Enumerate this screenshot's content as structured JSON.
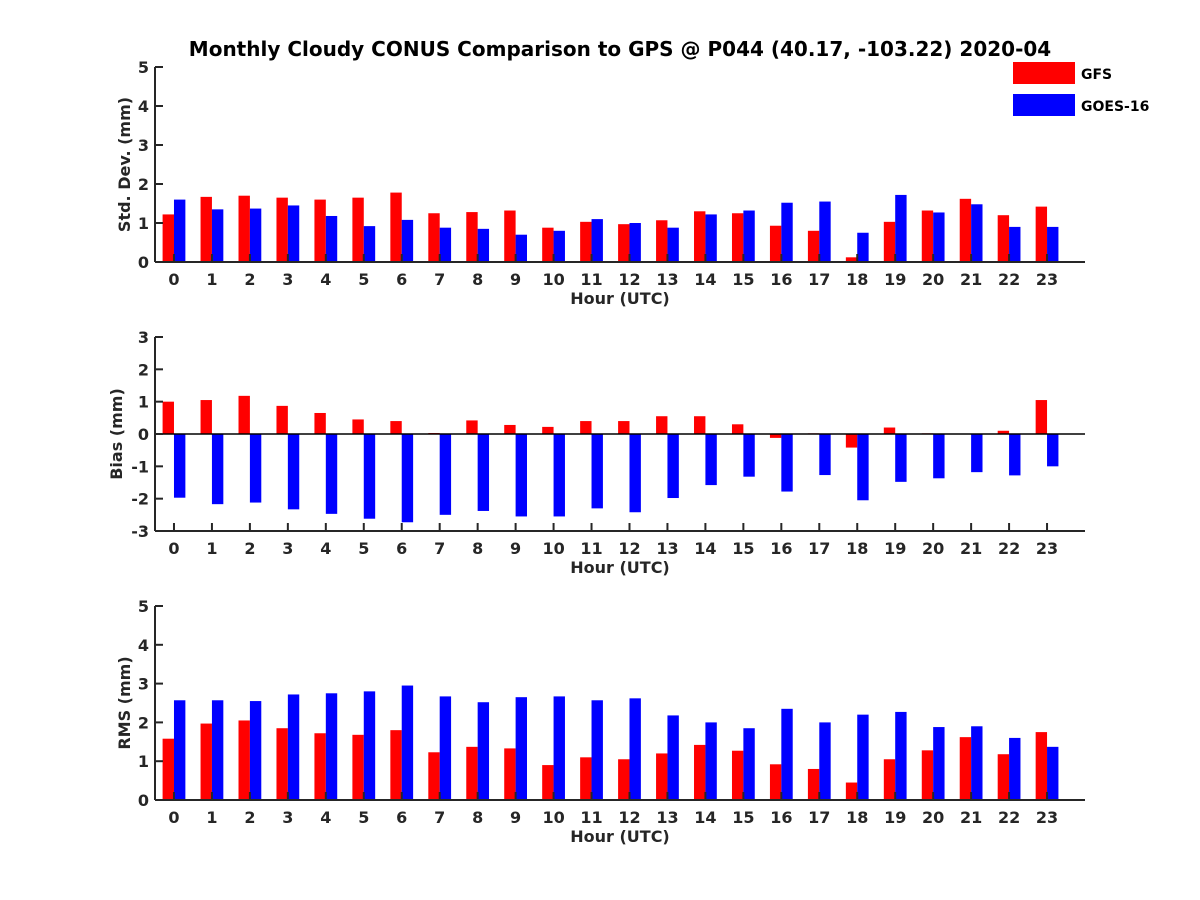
{
  "title": "Monthly Cloudy CONUS Comparison to GPS @ P044 (40.17, -103.22) 2020-04",
  "colors": {
    "gfs": "#ff0000",
    "goes": "#0000ff",
    "axis": "#262626"
  },
  "legend": [
    {
      "label": "GFS",
      "color": "#ff0000"
    },
    {
      "label": "GOES-16",
      "color": "#0000ff"
    }
  ],
  "chart_data": [
    {
      "type": "bar",
      "xlabel": "Hour (UTC)",
      "ylabel": "Std. Dev. (mm)",
      "ylim": [
        0,
        5
      ],
      "yticks": [
        0,
        1,
        2,
        3,
        4,
        5
      ],
      "categories": [
        "0",
        "1",
        "2",
        "3",
        "4",
        "5",
        "6",
        "7",
        "8",
        "9",
        "10",
        "11",
        "12",
        "13",
        "14",
        "15",
        "16",
        "17",
        "18",
        "19",
        "20",
        "21",
        "22",
        "23"
      ],
      "series": [
        {
          "name": "GFS",
          "values": [
            1.22,
            1.67,
            1.7,
            1.65,
            1.6,
            1.65,
            1.78,
            1.25,
            1.28,
            1.32,
            0.88,
            1.03,
            0.97,
            1.07,
            1.3,
            1.25,
            0.93,
            0.8,
            0.12,
            1.03,
            1.32,
            1.62,
            1.2,
            1.42
          ]
        },
        {
          "name": "GOES-16",
          "values": [
            1.6,
            1.35,
            1.37,
            1.45,
            1.18,
            0.92,
            1.08,
            0.88,
            0.85,
            0.7,
            0.8,
            1.1,
            1.0,
            0.88,
            1.22,
            1.32,
            1.52,
            1.55,
            0.75,
            1.72,
            1.27,
            1.48,
            0.9,
            0.9
          ]
        }
      ]
    },
    {
      "type": "bar",
      "xlabel": "Hour (UTC)",
      "ylabel": "Bias (mm)",
      "ylim": [
        -3,
        3
      ],
      "yticks": [
        -3,
        -2,
        -1,
        0,
        1,
        2,
        3
      ],
      "categories": [
        "0",
        "1",
        "2",
        "3",
        "4",
        "5",
        "6",
        "7",
        "8",
        "9",
        "10",
        "11",
        "12",
        "13",
        "14",
        "15",
        "16",
        "17",
        "18",
        "19",
        "20",
        "21",
        "22",
        "23"
      ],
      "series": [
        {
          "name": "GFS",
          "values": [
            1.0,
            1.05,
            1.18,
            0.87,
            0.65,
            0.45,
            0.4,
            0.03,
            0.42,
            0.28,
            0.22,
            0.4,
            0.4,
            0.55,
            0.55,
            0.3,
            -0.12,
            0.02,
            -0.42,
            0.2,
            0.02,
            0.0,
            0.1,
            1.05
          ]
        },
        {
          "name": "GOES-16",
          "values": [
            -1.97,
            -2.17,
            -2.12,
            -2.33,
            -2.47,
            -2.62,
            -2.73,
            -2.5,
            -2.38,
            -2.55,
            -2.55,
            -2.3,
            -2.42,
            -1.98,
            -1.58,
            -1.32,
            -1.78,
            -1.27,
            -2.05,
            -1.48,
            -1.37,
            -1.18,
            -1.28,
            -1.0
          ]
        }
      ]
    },
    {
      "type": "bar",
      "xlabel": "Hour (UTC)",
      "ylabel": "RMS (mm)",
      "ylim": [
        0,
        5
      ],
      "yticks": [
        0,
        1,
        2,
        3,
        4,
        5
      ],
      "categories": [
        "0",
        "1",
        "2",
        "3",
        "4",
        "5",
        "6",
        "7",
        "8",
        "9",
        "10",
        "11",
        "12",
        "13",
        "14",
        "15",
        "16",
        "17",
        "18",
        "19",
        "20",
        "21",
        "22",
        "23"
      ],
      "series": [
        {
          "name": "GFS",
          "values": [
            1.58,
            1.97,
            2.05,
            1.85,
            1.72,
            1.68,
            1.8,
            1.23,
            1.37,
            1.33,
            0.9,
            1.1,
            1.05,
            1.2,
            1.42,
            1.27,
            0.92,
            0.8,
            0.45,
            1.05,
            1.28,
            1.62,
            1.18,
            1.75
          ]
        },
        {
          "name": "GOES-16",
          "values": [
            2.57,
            2.57,
            2.55,
            2.72,
            2.75,
            2.8,
            2.95,
            2.67,
            2.52,
            2.65,
            2.67,
            2.57,
            2.62,
            2.18,
            2.0,
            1.85,
            2.35,
            2.0,
            2.2,
            2.27,
            1.88,
            1.9,
            1.6,
            1.37
          ]
        }
      ]
    }
  ]
}
